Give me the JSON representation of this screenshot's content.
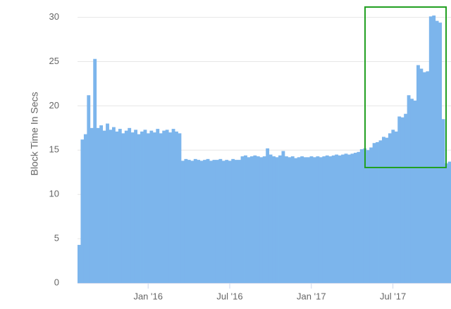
{
  "chart_data": {
    "type": "bar",
    "y_label": "Block Time In Secs",
    "categories": [
      null,
      null,
      null,
      null,
      null,
      null,
      null,
      null,
      null,
      null,
      null,
      null,
      null,
      null,
      null,
      null,
      null,
      null,
      null,
      null,
      null,
      null,
      "Jan '16",
      null,
      null,
      null,
      null,
      null,
      null,
      null,
      null,
      null,
      null,
      null,
      null,
      null,
      null,
      null,
      null,
      null,
      null,
      null,
      null,
      null,
      null,
      null,
      null,
      null,
      "Jul '16",
      null,
      null,
      null,
      null,
      null,
      null,
      null,
      null,
      null,
      null,
      null,
      null,
      null,
      null,
      null,
      null,
      null,
      null,
      null,
      null,
      null,
      null,
      null,
      null,
      null,
      "Jan '17",
      null,
      null,
      null,
      null,
      null,
      null,
      null,
      null,
      null,
      null,
      null,
      null,
      null,
      null,
      null,
      null,
      null,
      null,
      null,
      null,
      null,
      null,
      null,
      null,
      null,
      "Jul '17",
      null,
      null,
      null,
      null,
      null,
      null,
      null,
      null,
      null,
      null,
      null,
      null,
      null,
      null,
      null,
      null,
      null,
      null
    ],
    "values": [
      4.3,
      16.2,
      16.8,
      21.2,
      17.5,
      25.3,
      17.5,
      17.8,
      17.2,
      18,
      17.3,
      17.6,
      17.1,
      17.4,
      16.9,
      17.2,
      17.5,
      17,
      17.3,
      16.8,
      17.1,
      17.3,
      16.9,
      17.2,
      17,
      17.4,
      16.9,
      17.2,
      17.3,
      17,
      17.4,
      17.1,
      16.9,
      13.8,
      14,
      13.9,
      13.8,
      14,
      13.9,
      13.8,
      13.9,
      14,
      13.8,
      13.9,
      13.9,
      14,
      13.8,
      13.9,
      13.8,
      14,
      13.9,
      13.9,
      14.3,
      14.4,
      14.2,
      14.3,
      14.4,
      14.3,
      14.2,
      14.3,
      15.2,
      14.5,
      14.3,
      14.2,
      14.4,
      14.9,
      14.3,
      14.2,
      14.3,
      14.1,
      14.2,
      14.3,
      14.2,
      14.2,
      14.3,
      14.2,
      14.3,
      14.2,
      14.3,
      14.4,
      14.3,
      14.4,
      14.5,
      14.4,
      14.5,
      14.6,
      14.5,
      14.6,
      14.7,
      14.8,
      15.1,
      15.2,
      15.0,
      15.3,
      15.8,
      15.9,
      16.1,
      16.5,
      16.4,
      16.9,
      17.3,
      17.1,
      18.8,
      18.7,
      19.1,
      21.2,
      20.8,
      20.6,
      24.6,
      24.2,
      23.8,
      23.9,
      30.1,
      30.2,
      29.6,
      29.4,
      18.5,
      13.5,
      13.7
    ],
    "color": "#7cb5ec",
    "ylim": [
      0,
      31
    ],
    "yticks": [
      0,
      5,
      10,
      15,
      20,
      25,
      30
    ],
    "grid": true
  }
}
